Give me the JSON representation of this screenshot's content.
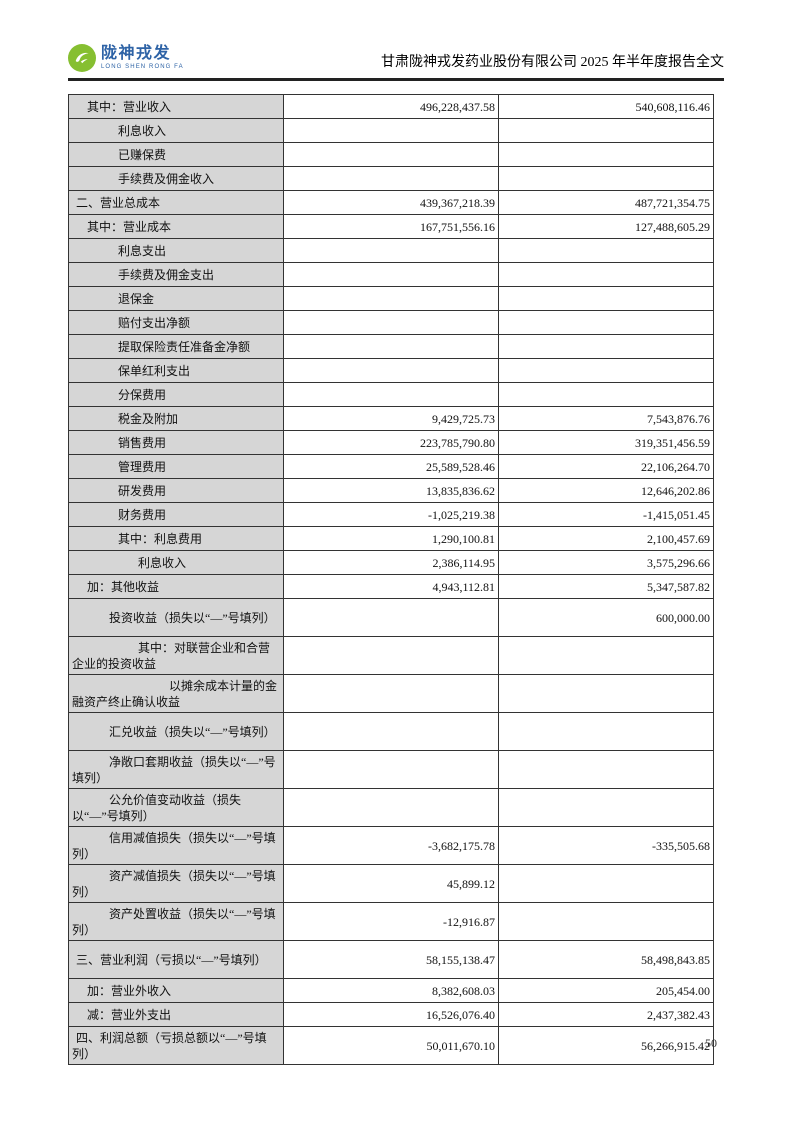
{
  "header": {
    "logo_cn": "陇神戎发",
    "logo_en": "LONG SHEN RONG FA",
    "logo_icon": "bird-swoosh-icon",
    "logo_green": "#86bf31",
    "logo_blue": "#2e63a6",
    "title": "甘肃陇神戎发药业股份有限公司 2025 年半年度报告全文"
  },
  "table": {
    "shading_color": "#d6d6d6",
    "rows": [
      {
        "label": "其中：营业收入",
        "indent": "l1",
        "wrap": false,
        "current": "496,228,437.58",
        "prior": "540,608,116.46"
      },
      {
        "label": "利息收入",
        "indent": "l2",
        "wrap": false,
        "current": "",
        "prior": ""
      },
      {
        "label": "已赚保费",
        "indent": "l2",
        "wrap": false,
        "current": "",
        "prior": ""
      },
      {
        "label": "手续费及佣金收入",
        "indent": "l2",
        "wrap": false,
        "current": "",
        "prior": ""
      },
      {
        "label": "二、营业总成本",
        "indent": "l0",
        "wrap": false,
        "current": "439,367,218.39",
        "prior": "487,721,354.75"
      },
      {
        "label": "其中：营业成本",
        "indent": "l1",
        "wrap": false,
        "current": "167,751,556.16",
        "prior": "127,488,605.29"
      },
      {
        "label": "利息支出",
        "indent": "l2",
        "wrap": false,
        "current": "",
        "prior": ""
      },
      {
        "label": "手续费及佣金支出",
        "indent": "l2",
        "wrap": false,
        "current": "",
        "prior": ""
      },
      {
        "label": "退保金",
        "indent": "l2",
        "wrap": false,
        "current": "",
        "prior": ""
      },
      {
        "label": "赔付支出净额",
        "indent": "l2",
        "wrap": false,
        "current": "",
        "prior": ""
      },
      {
        "label": "提取保险责任准备金净额",
        "indent": "l2",
        "wrap": false,
        "current": "",
        "prior": ""
      },
      {
        "label": "保单红利支出",
        "indent": "l2",
        "wrap": false,
        "current": "",
        "prior": ""
      },
      {
        "label": "分保费用",
        "indent": "l2",
        "wrap": false,
        "current": "",
        "prior": ""
      },
      {
        "label": "税金及附加",
        "indent": "l2",
        "wrap": false,
        "current": "9,429,725.73",
        "prior": "7,543,876.76"
      },
      {
        "label": "销售费用",
        "indent": "l2",
        "wrap": false,
        "current": "223,785,790.80",
        "prior": "319,351,456.59"
      },
      {
        "label": "管理费用",
        "indent": "l2",
        "wrap": false,
        "current": "25,589,528.46",
        "prior": "22,106,264.70"
      },
      {
        "label": "研发费用",
        "indent": "l2",
        "wrap": false,
        "current": "13,835,836.62",
        "prior": "12,646,202.86"
      },
      {
        "label": "财务费用",
        "indent": "l2",
        "wrap": false,
        "current": "-1,025,219.38",
        "prior": "-1,415,051.45"
      },
      {
        "label": "其中：利息费用",
        "indent": "l2",
        "wrap": false,
        "current": "1,290,100.81",
        "prior": "2,100,457.69"
      },
      {
        "label": "利息收入",
        "indent": "l3",
        "wrap": false,
        "current": "2,386,114.95",
        "prior": "3,575,296.66"
      },
      {
        "label": "加：其他收益",
        "indent": "l1",
        "wrap": false,
        "current": "4,943,112.81",
        "prior": "5,347,587.82"
      },
      {
        "label": "投资收益（损失以“—”号填列）",
        "indent": "l2w",
        "wrap": true,
        "current": "",
        "prior": "600,000.00"
      },
      {
        "label": "其中：对联营企业和合营企业的投资收益",
        "indent": "l3",
        "wrap": true,
        "current": "",
        "prior": ""
      },
      {
        "label": "以摊余成本计量的金融资产终止确认收益",
        "indent": "l4",
        "wrap": true,
        "current": "",
        "prior": ""
      },
      {
        "label": "汇兑收益（损失以“—”号填列）",
        "indent": "l2w",
        "wrap": true,
        "current": "",
        "prior": ""
      },
      {
        "label": "净敞口套期收益（损失以“—”号填列）",
        "indent": "l2w",
        "wrap": true,
        "current": "",
        "prior": ""
      },
      {
        "label": "公允价值变动收益（损失以“—”号填列）",
        "indent": "l2w",
        "wrap": true,
        "current": "",
        "prior": ""
      },
      {
        "label": "信用减值损失（损失以“—”号填列）",
        "indent": "l2w",
        "wrap": true,
        "current": "-3,682,175.78",
        "prior": "-335,505.68"
      },
      {
        "label": "资产减值损失（损失以“—”号填列）",
        "indent": "l2w",
        "wrap": true,
        "current": "45,899.12",
        "prior": ""
      },
      {
        "label": "资产处置收益（损失以“—”号填列）",
        "indent": "l2w",
        "wrap": true,
        "current": "-12,916.87",
        "prior": ""
      },
      {
        "label": "三、营业利润（亏损以“—”号填列）",
        "indent": "l0",
        "wrap": true,
        "current": "58,155,138.47",
        "prior": "58,498,843.85"
      },
      {
        "label": "加：营业外收入",
        "indent": "l1",
        "wrap": false,
        "current": "8,382,608.03",
        "prior": "205,454.00"
      },
      {
        "label": "减：营业外支出",
        "indent": "l1",
        "wrap": false,
        "current": "16,526,076.40",
        "prior": "2,437,382.43"
      },
      {
        "label": "四、利润总额（亏损总额以“—”号填列）",
        "indent": "l0",
        "wrap": true,
        "current": "50,011,670.10",
        "prior": "56,266,915.42"
      }
    ]
  },
  "footer": {
    "page_number": "50"
  }
}
